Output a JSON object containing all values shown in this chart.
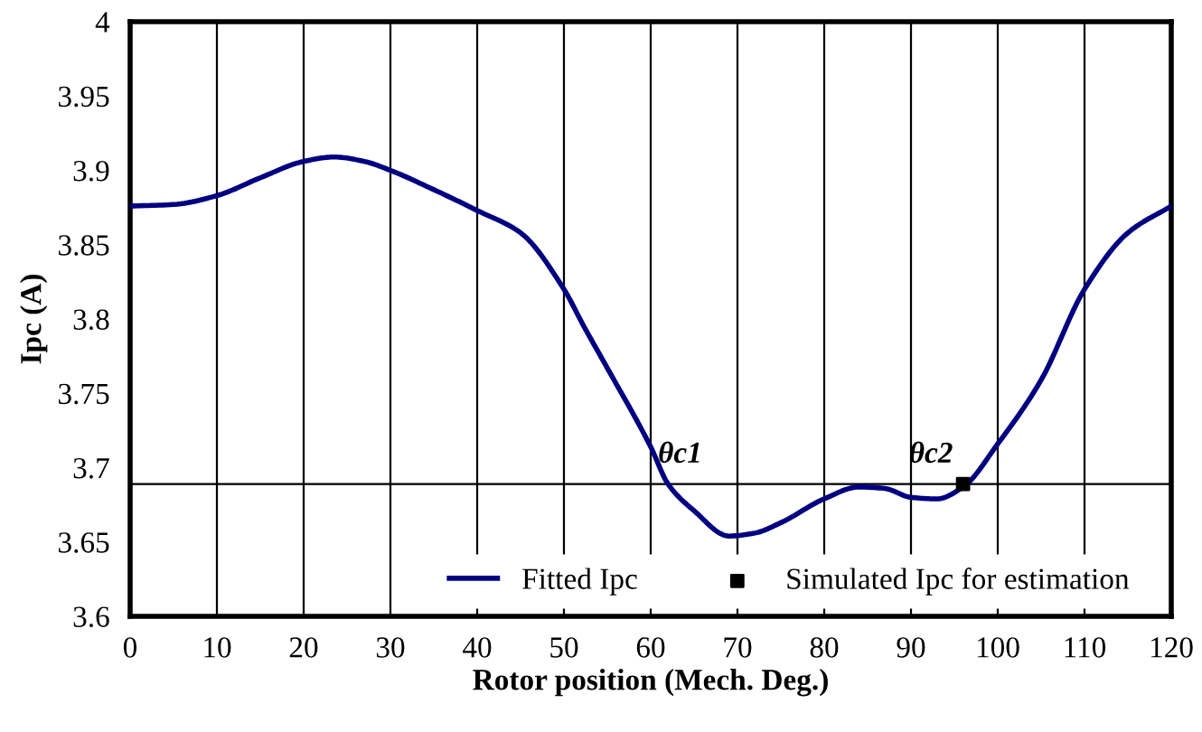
{
  "chart_data": {
    "type": "line",
    "xlabel": "Rotor position (Mech. Deg.)",
    "ylabel": "Ipc (A)",
    "xlim": [
      0,
      120
    ],
    "xticks": [
      0,
      10,
      20,
      30,
      40,
      50,
      60,
      70,
      80,
      90,
      100,
      110,
      120
    ],
    "ylim": [
      3.6,
      4
    ],
    "yticks": [
      3.6,
      3.65,
      3.7,
      3.75,
      3.8,
      3.85,
      3.9,
      3.95,
      4
    ],
    "grid": "x",
    "legend": "bottom",
    "marker": "none",
    "line_style": "solid",
    "series": [
      {
        "name": "Fitted Ipc",
        "color": "#000080",
        "x": [
          0,
          5,
          10,
          15,
          20,
          23.5,
          27,
          30,
          35,
          40,
          45,
          50,
          52.3,
          55,
          60,
          62,
          65,
          69,
          72,
          75,
          80,
          84,
          87,
          90,
          93,
          96,
          100,
          105,
          110,
          115,
          120
        ],
        "values": [
          3.876,
          3.877,
          3.883,
          3.895,
          3.906,
          3.909,
          3.906,
          3.9,
          3.887,
          3.873,
          3.858,
          3.82,
          3.795,
          3.767,
          3.714,
          3.689,
          3.671,
          3.654,
          3.656,
          3.663,
          3.679,
          3.687,
          3.686,
          3.68,
          3.679,
          3.687,
          3.716,
          3.759,
          3.82,
          3.858,
          3.876
        ]
      },
      {
        "name": "Simulated Ipc for estimation",
        "type": "scatter",
        "marker": "square",
        "color": "#000000",
        "x": [
          96
        ],
        "values": [
          3.689
        ]
      }
    ],
    "ref_lines": [
      {
        "axis": "y",
        "value": 3.689,
        "color": "#000000"
      }
    ],
    "annotations": [
      {
        "text": "θc1",
        "x": 62,
        "y": 3.689
      },
      {
        "text": "θc2",
        "x": 96,
        "y": 3.689
      }
    ]
  }
}
